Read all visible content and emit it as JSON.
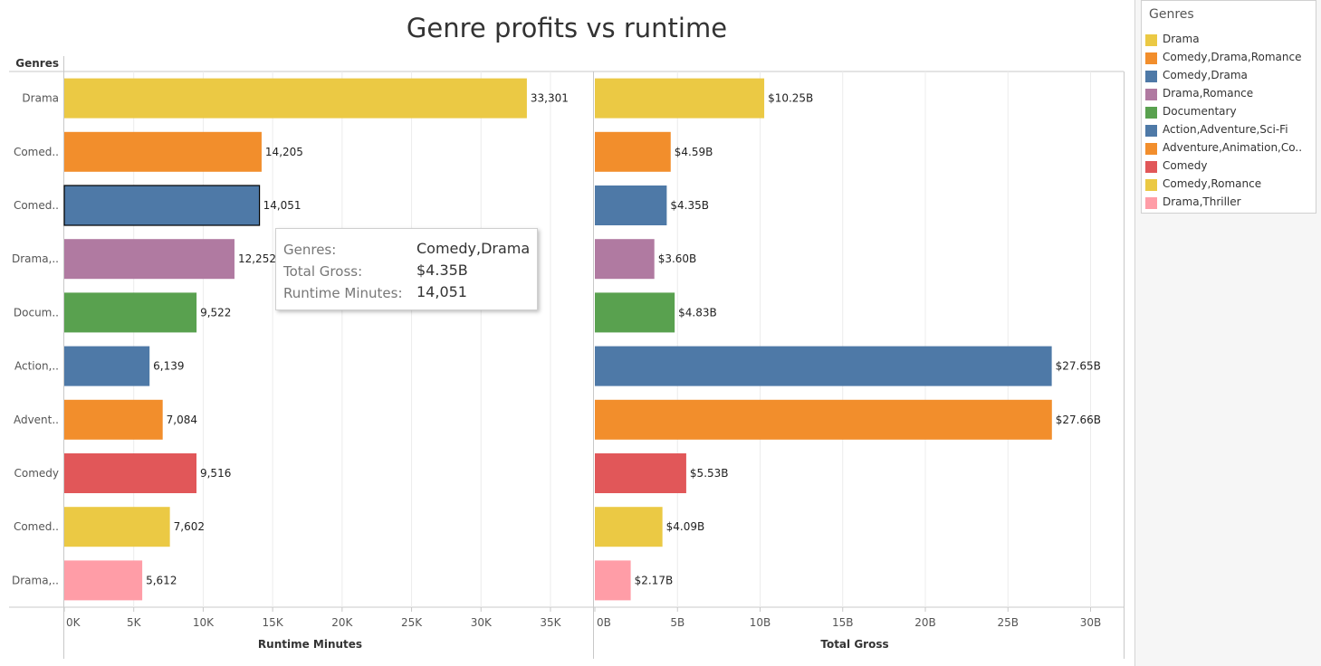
{
  "title": "Genre profits vs runtime",
  "row_header": "Genres",
  "row_labels": [
    "Drama",
    "Comed..",
    "Comed..",
    "Drama,..",
    "Docum..",
    "Action,..",
    "Advent..",
    "Comedy",
    "Comed..",
    "Drama,.."
  ],
  "legend": {
    "title": "Genres",
    "items": [
      {
        "label": "Drama",
        "color": "#EBC944"
      },
      {
        "label": "Comedy,Drama,Romance",
        "color": "#F28E2C"
      },
      {
        "label": "Comedy,Drama",
        "color": "#4E79A7"
      },
      {
        "label": "Drama,Romance",
        "color": "#B07AA1"
      },
      {
        "label": "Documentary",
        "color": "#59A14F"
      },
      {
        "label": "Action,Adventure,Sci-Fi",
        "color": "#4E79A7"
      },
      {
        "label": "Adventure,Animation,Co..",
        "color": "#F28E2C"
      },
      {
        "label": "Comedy",
        "color": "#E15759"
      },
      {
        "label": "Comedy,Romance",
        "color": "#EBC944"
      },
      {
        "label": "Drama,Thriller",
        "color": "#FF9DA7"
      }
    ]
  },
  "tooltip": {
    "genres_key": "Genres:",
    "genres_val": "Comedy,Drama",
    "gross_key": "Total Gross:",
    "gross_val": "$4.35B",
    "runtime_key": "Runtime Minutes:",
    "runtime_val": "14,051"
  },
  "chart_data": [
    {
      "type": "bar",
      "orientation": "horizontal",
      "categories": [
        "Drama",
        "Comedy,Drama,Romance",
        "Comedy,Drama",
        "Drama,Romance",
        "Documentary",
        "Action,Adventure,Sci-Fi",
        "Adventure,Animation,Co..",
        "Comedy",
        "Comedy,Romance",
        "Drama,Thriller"
      ],
      "values": [
        33301,
        14205,
        14051,
        12252,
        9522,
        6139,
        7084,
        9516,
        7602,
        5612
      ],
      "data_labels": [
        "33,301",
        "14,205",
        "14,051",
        "12,252",
        "9,522",
        "6,139",
        "7,084",
        "9,516",
        "7,602",
        "5,612"
      ],
      "colors": [
        "#EBC944",
        "#F28E2C",
        "#4E79A7",
        "#B07AA1",
        "#59A14F",
        "#4E79A7",
        "#F28E2C",
        "#E15759",
        "#EBC944",
        "#FF9DA7"
      ],
      "highlighted_index": 2,
      "xlabel": "Runtime Minutes",
      "xlim": [
        0,
        38000
      ],
      "ticks": [
        0,
        5000,
        10000,
        15000,
        20000,
        25000,
        30000,
        35000
      ],
      "tick_labels": [
        "0K",
        "5K",
        "10K",
        "15K",
        "20K",
        "25K",
        "30K",
        "35K"
      ],
      "grid": true
    },
    {
      "type": "bar",
      "orientation": "horizontal",
      "categories": [
        "Drama",
        "Comedy,Drama,Romance",
        "Comedy,Drama",
        "Drama,Romance",
        "Documentary",
        "Action,Adventure,Sci-Fi",
        "Adventure,Animation,Co..",
        "Comedy",
        "Comedy,Romance",
        "Drama,Thriller"
      ],
      "values": [
        10.25,
        4.59,
        4.35,
        3.6,
        4.83,
        27.65,
        27.66,
        5.53,
        4.09,
        2.17
      ],
      "data_labels": [
        "$10.25B",
        "$4.59B",
        "$4.35B",
        "$3.60B",
        "$4.83B",
        "$27.65B",
        "$27.66B",
        "$5.53B",
        "$4.09B",
        "$2.17B"
      ],
      "colors": [
        "#EBC944",
        "#F28E2C",
        "#4E79A7",
        "#B07AA1",
        "#59A14F",
        "#4E79A7",
        "#F28E2C",
        "#E15759",
        "#EBC944",
        "#FF9DA7"
      ],
      "xlabel": "Total Gross",
      "units": "billions USD",
      "xlim": [
        0,
        32
      ],
      "ticks": [
        0,
        5,
        10,
        15,
        20,
        25,
        30
      ],
      "tick_labels": [
        "0B",
        "5B",
        "10B",
        "15B",
        "20B",
        "25B",
        "30B"
      ],
      "grid": true
    }
  ]
}
